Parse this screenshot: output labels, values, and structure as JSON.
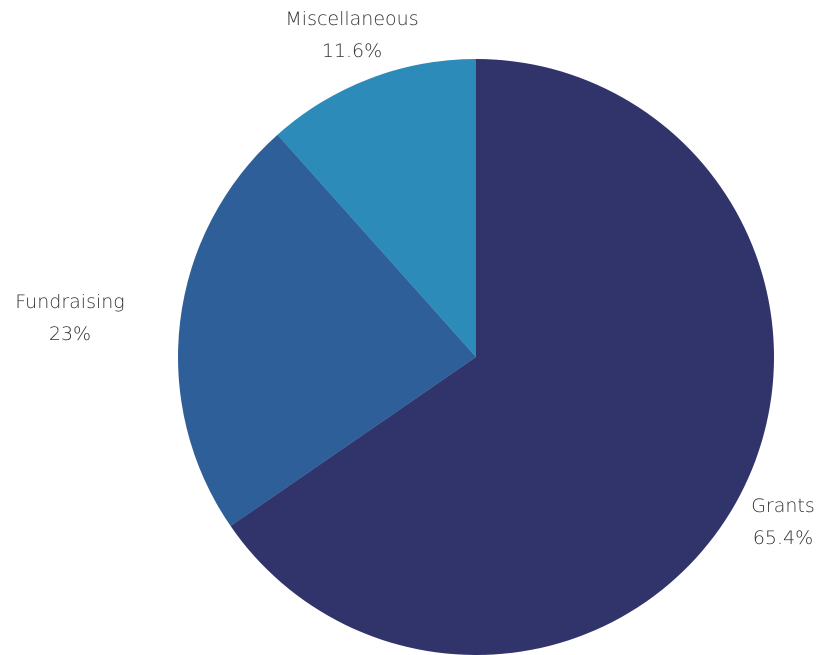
{
  "chart_data": {
    "type": "pie",
    "categories": [
      "Grants",
      "Fundraising",
      "Miscellaneous"
    ],
    "values": [
      65.4,
      23,
      11.6
    ],
    "value_labels": [
      "65.4%",
      "23%",
      "11.6%"
    ],
    "colors": [
      "#31346b",
      "#2e5f98",
      "#2d8bb9"
    ],
    "start_angle": "12 o'clock",
    "direction": "clockwise",
    "legend": "none"
  }
}
